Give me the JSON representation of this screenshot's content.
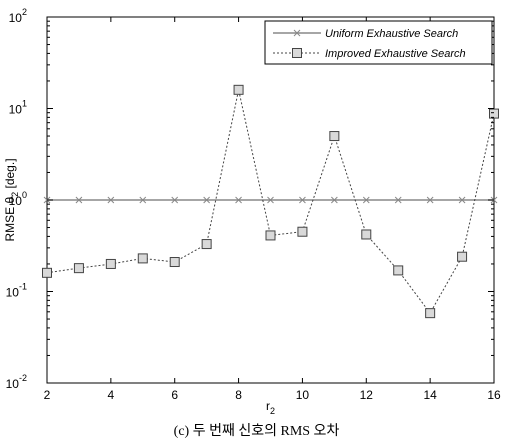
{
  "chart_data": {
    "type": "line",
    "xlabel": "r",
    "xlabel_subscript": "2",
    "ylabel": "RMSE θ",
    "ylabel_subscript": "2",
    "ylabel_unit": " [deg.]",
    "xlim": [
      2,
      16
    ],
    "ylim": [
      0.01,
      100
    ],
    "y_scale": "log",
    "x_ticks": [
      "2",
      "4",
      "6",
      "8",
      "10",
      "12",
      "14",
      "16"
    ],
    "y_ticks": [
      {
        "base": "10",
        "exp": "-2",
        "value": 0.01
      },
      {
        "base": "10",
        "exp": "-1",
        "value": 0.1
      },
      {
        "base": "10",
        "exp": "0",
        "value": 1
      },
      {
        "base": "10",
        "exp": "1",
        "value": 10
      },
      {
        "base": "10",
        "exp": "2",
        "value": 100
      }
    ],
    "grid": false,
    "legend_position": "top-right",
    "x": [
      2,
      3,
      4,
      5,
      6,
      7,
      8,
      9,
      10,
      11,
      12,
      13,
      14,
      15,
      16
    ],
    "series": [
      {
        "name": "Uniform Exhaustive Search",
        "marker": "x",
        "line": "solid",
        "color": "#888888",
        "values": [
          1,
          1,
          1,
          1,
          1,
          1,
          1,
          1,
          1,
          1,
          1,
          1,
          1,
          1,
          1
        ]
      },
      {
        "name": "Improved Exhaustive Search",
        "marker": "square",
        "line": "dotted",
        "color": "#444444",
        "values": [
          0.16,
          0.18,
          0.2,
          0.23,
          0.21,
          0.33,
          16,
          0.41,
          0.45,
          5,
          0.42,
          0.17,
          0.058,
          0.24,
          8.8
        ]
      }
    ]
  },
  "caption": "(c) 두 번째 신호의 RMS 오차"
}
